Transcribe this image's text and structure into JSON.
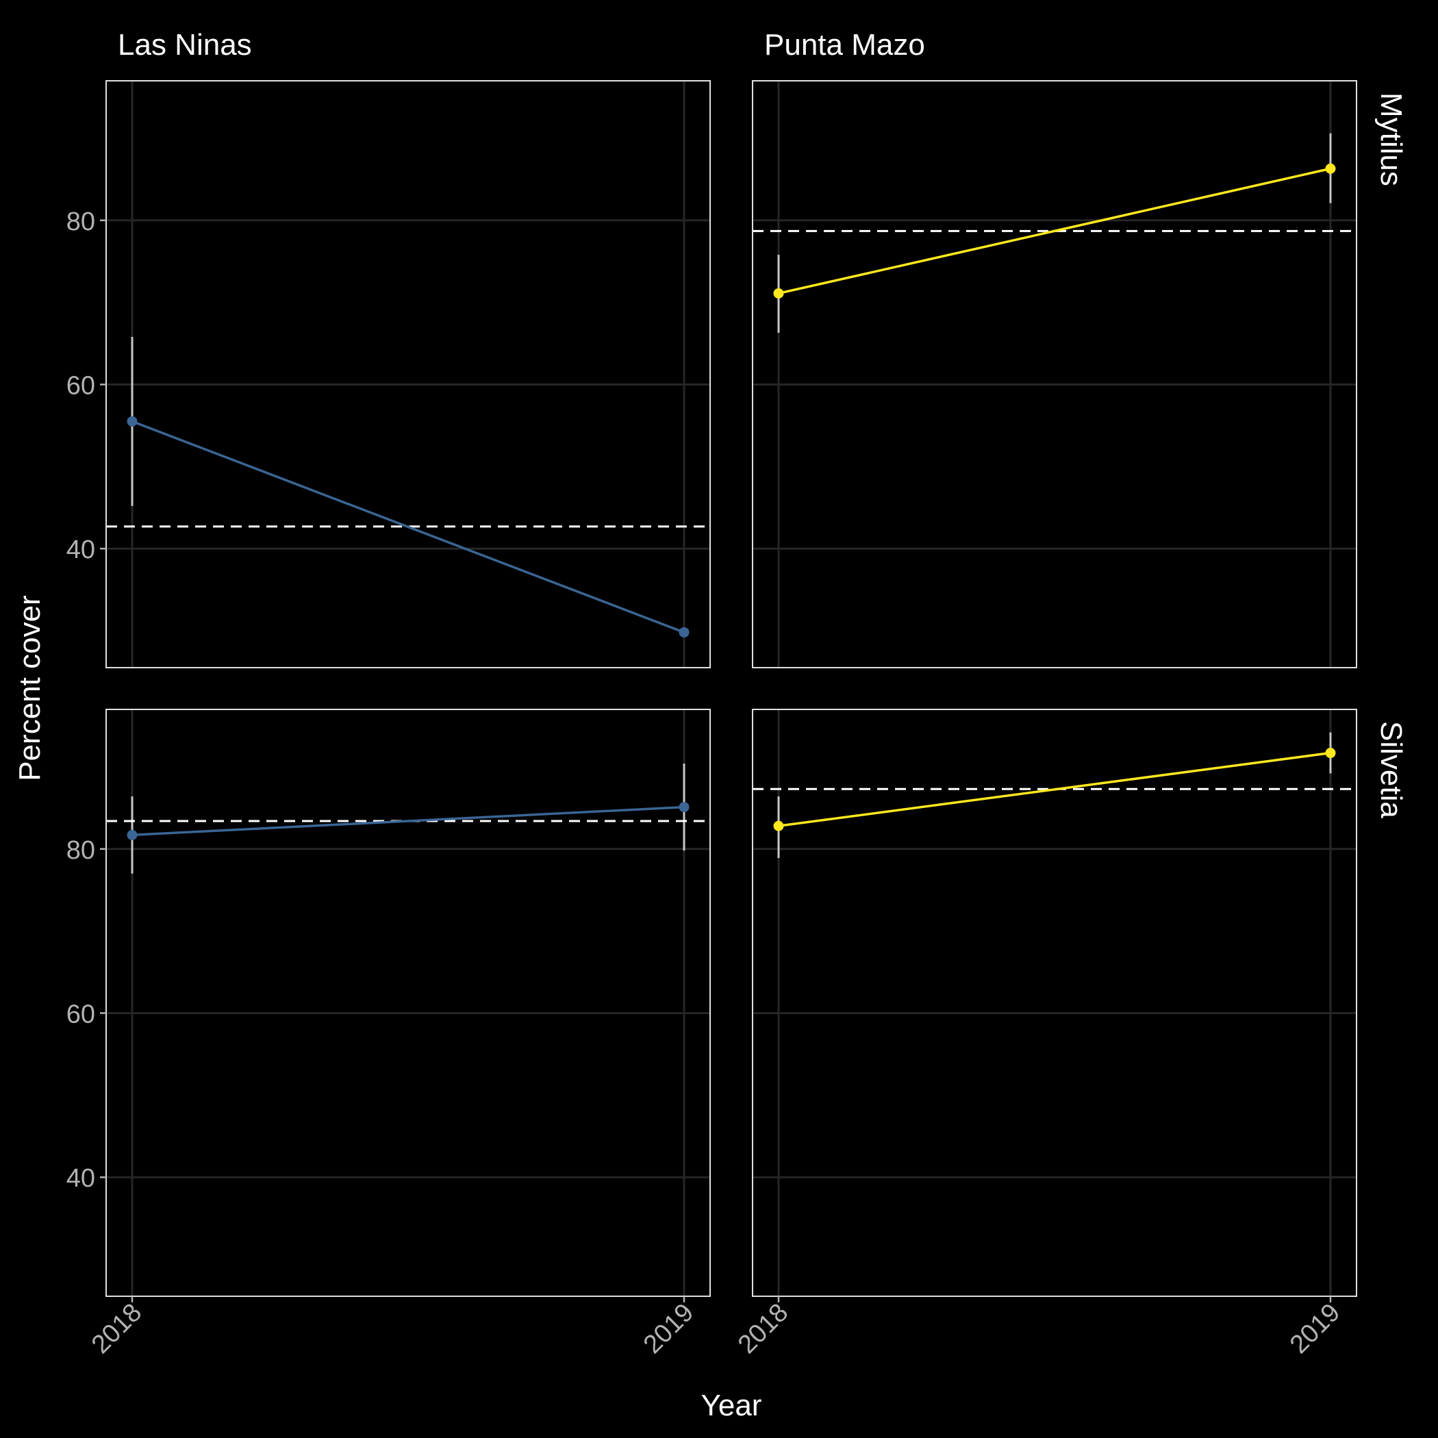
{
  "chart_data": {
    "type": "line",
    "xlabel": "Year",
    "ylabel": "Percent cover",
    "x_categories": [
      "2018",
      "2019"
    ],
    "ylim": [
      25.5,
      97
    ],
    "y_ticks": [
      40,
      60,
      80
    ],
    "grid": true,
    "facet_columns": [
      "Las Ninas",
      "Punta Mazo"
    ],
    "facet_rows": [
      "Mytilus",
      "Silvetia"
    ],
    "colors": {
      "Las Ninas": "#3b6594",
      "Punta Mazo": "#ffe81e",
      "background": "#000000",
      "gridline": "#262626",
      "panel_border": "#e0e0e0",
      "errorbar": "#c8c8c8",
      "reference_line": "#ffffff"
    },
    "panels": [
      {
        "site": "Las Ninas",
        "species": "Mytilus",
        "row": 0,
        "col": 0,
        "values": [
          55.5,
          29.8
        ],
        "error_low": [
          45.2,
          null
        ],
        "error_high": [
          65.8,
          null
        ],
        "reference_mean": 42.7
      },
      {
        "site": "Punta Mazo",
        "species": "Mytilus",
        "row": 0,
        "col": 1,
        "values": [
          71.1,
          86.3
        ],
        "error_low": [
          66.3,
          82.1
        ],
        "error_high": [
          75.8,
          90.6
        ],
        "reference_mean": 78.7
      },
      {
        "site": "Las Ninas",
        "species": "Silvetia",
        "row": 1,
        "col": 0,
        "values": [
          81.7,
          85.1
        ],
        "error_low": [
          77.0,
          79.8
        ],
        "error_high": [
          86.4,
          90.4
        ],
        "reference_mean": 83.4
      },
      {
        "site": "Punta Mazo",
        "species": "Silvetia",
        "row": 1,
        "col": 1,
        "values": [
          82.8,
          91.7
        ],
        "error_low": [
          78.9,
          89.2
        ],
        "error_high": [
          86.4,
          94.2
        ],
        "reference_mean": 87.3
      }
    ]
  }
}
